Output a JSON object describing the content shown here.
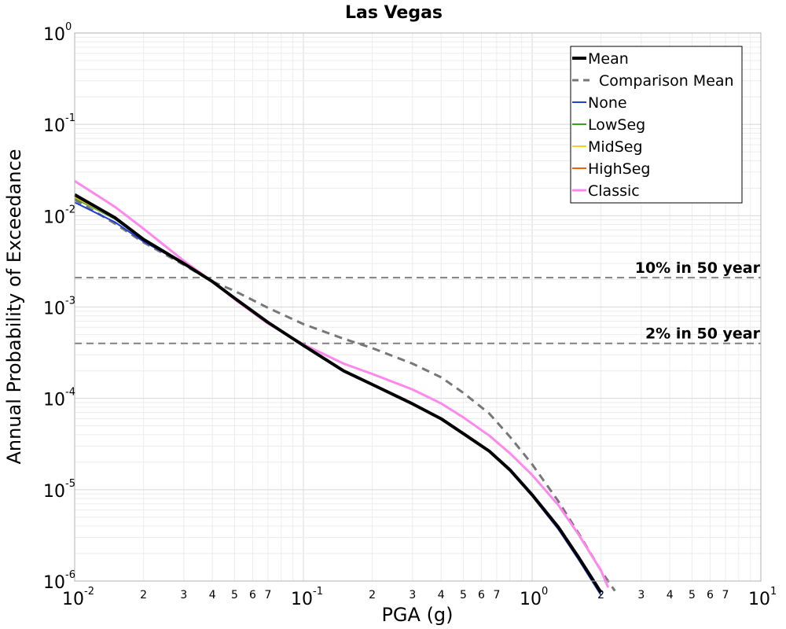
{
  "chart_data": {
    "type": "line",
    "title": "Las Vegas",
    "xlabel": "PGA (g)",
    "ylabel": "Annual Probability of Exceedance",
    "xscale": "log",
    "yscale": "log",
    "xlim": [
      0.01,
      10
    ],
    "ylim": [
      1e-06,
      1
    ],
    "grid": true,
    "legend_position": "top-right",
    "x_major_ticks": [
      {
        "base": "10",
        "exp": "-2",
        "value": 0.01
      },
      {
        "base": "10",
        "exp": "-1",
        "value": 0.1
      },
      {
        "base": "10",
        "exp": "0",
        "value": 1
      },
      {
        "base": "10",
        "exp": "1",
        "value": 10
      }
    ],
    "y_major_ticks": [
      {
        "base": "10",
        "exp": "0",
        "value": 1
      },
      {
        "base": "10",
        "exp": "-1",
        "value": 0.1
      },
      {
        "base": "10",
        "exp": "-2",
        "value": 0.01
      },
      {
        "base": "10",
        "exp": "-3",
        "value": 0.001
      },
      {
        "base": "10",
        "exp": "-4",
        "value": 0.0001
      },
      {
        "base": "10",
        "exp": "-5",
        "value": 1e-05
      },
      {
        "base": "10",
        "exp": "-6",
        "value": 1e-06
      }
    ],
    "x_minor_ticks": [
      {
        "label": "2",
        "value": 0.02
      },
      {
        "label": "3",
        "value": 0.03
      },
      {
        "label": "4",
        "value": 0.04
      },
      {
        "label": "5",
        "value": 0.05
      },
      {
        "label": "6",
        "value": 0.06
      },
      {
        "label": "7",
        "value": 0.07
      },
      {
        "label": "2",
        "value": 0.2
      },
      {
        "label": "3",
        "value": 0.3
      },
      {
        "label": "4",
        "value": 0.4
      },
      {
        "label": "5",
        "value": 0.5
      },
      {
        "label": "6",
        "value": 0.6
      },
      {
        "label": "7",
        "value": 0.7
      },
      {
        "label": "2",
        "value": 2
      },
      {
        "label": "3",
        "value": 3
      },
      {
        "label": "4",
        "value": 4
      },
      {
        "label": "5",
        "value": 5
      },
      {
        "label": "6",
        "value": 6
      },
      {
        "label": "7",
        "value": 7
      }
    ],
    "reference_lines": [
      {
        "label": "10% in 50 year",
        "y": 0.0021
      },
      {
        "label": "2% in 50 year",
        "y": 0.0004
      }
    ],
    "series": [
      {
        "name": "Mean",
        "color": "#000000",
        "style": "solid",
        "width": 4,
        "x": [
          0.01,
          0.015,
          0.02,
          0.03,
          0.04,
          0.05,
          0.07,
          0.1,
          0.15,
          0.2,
          0.3,
          0.4,
          0.5,
          0.65,
          0.8,
          1.0,
          1.3,
          1.6,
          2.0
        ],
        "y": [
          0.017,
          0.0095,
          0.0055,
          0.003,
          0.0019,
          0.00125,
          0.00068,
          0.00038,
          0.0002,
          0.000142,
          8.72e-05,
          5.98e-05,
          4.12e-05,
          2.64e-05,
          1.65e-05,
          8.8e-06,
          3.9e-06,
          1.8e-06,
          7.5e-07
        ]
      },
      {
        "name": "Comparison Mean",
        "color": "#777777",
        "style": "dashed",
        "width": 3,
        "x": [
          0.01,
          0.015,
          0.02,
          0.03,
          0.04,
          0.05,
          0.07,
          0.1,
          0.15,
          0.2,
          0.3,
          0.4,
          0.5,
          0.65,
          0.8,
          1.0,
          1.3,
          1.6,
          2.0,
          2.3
        ],
        "y": [
          0.015,
          0.0082,
          0.0051,
          0.0029,
          0.0019,
          0.0015,
          0.00098,
          0.00065,
          0.00045,
          0.000355,
          0.00024,
          0.00017,
          0.000115,
          6.8e-05,
          3.8e-05,
          1.9e-05,
          7.5e-06,
          3.3e-06,
          1.3e-06,
          7.8e-07
        ]
      },
      {
        "name": "None",
        "color": "#1f3fd6",
        "style": "solid",
        "width": 2,
        "x": [
          0.01,
          0.015,
          0.02,
          0.03,
          0.04,
          0.05,
          0.07,
          0.1,
          0.15,
          0.2,
          0.3,
          0.4,
          0.5,
          0.65,
          0.8,
          1.0,
          1.3,
          1.6,
          2.0
        ],
        "y": [
          0.014,
          0.0085,
          0.0052,
          0.003,
          0.0019,
          0.00126,
          0.00069,
          0.00038,
          0.0002,
          0.000142,
          8.65e-05,
          5.9e-05,
          4.05e-05,
          2.6e-05,
          1.6e-05,
          8.5e-06,
          3.7e-06,
          1.7e-06,
          7e-07
        ]
      },
      {
        "name": "LowSeg",
        "color": "#3aa02a",
        "style": "solid",
        "width": 2,
        "x": [
          0.01,
          0.015,
          0.02,
          0.03,
          0.04,
          0.05,
          0.07,
          0.1,
          0.15,
          0.2,
          0.3,
          0.4,
          0.5,
          0.65,
          0.8,
          1.0,
          1.3,
          1.6,
          2.0
        ],
        "y": [
          0.0155,
          0.0092,
          0.0054,
          0.003,
          0.0019,
          0.00125,
          0.00068,
          0.00038,
          0.0002,
          0.000142,
          8.7e-05,
          5.98e-05,
          4.12e-05,
          2.64e-05,
          1.65e-05,
          8.8e-06,
          3.9e-06,
          1.8e-06,
          7.5e-07
        ]
      },
      {
        "name": "MidSeg",
        "color": "#f0d020",
        "style": "solid",
        "width": 2,
        "x": [
          0.01,
          0.015,
          0.02,
          0.03,
          0.04,
          0.05,
          0.07,
          0.1,
          0.15,
          0.2,
          0.3,
          0.4,
          0.5,
          0.65,
          0.8,
          1.0,
          1.3,
          1.6,
          2.0
        ],
        "y": [
          0.016,
          0.0093,
          0.0055,
          0.003,
          0.0019,
          0.00125,
          0.00068,
          0.00038,
          0.0002,
          0.000142,
          8.7e-05,
          5.98e-05,
          4.12e-05,
          2.64e-05,
          1.65e-05,
          8.8e-06,
          3.9e-06,
          1.8e-06,
          7.5e-07
        ]
      },
      {
        "name": "HighSeg",
        "color": "#f06010",
        "style": "solid",
        "width": 2,
        "x": [
          0.01,
          0.015,
          0.02,
          0.03,
          0.04,
          0.05,
          0.07,
          0.1,
          0.15,
          0.2,
          0.3,
          0.4,
          0.5,
          0.65,
          0.8,
          1.0,
          1.3,
          1.6,
          2.0
        ],
        "y": [
          0.0165,
          0.0094,
          0.0055,
          0.003,
          0.0019,
          0.00125,
          0.00068,
          0.00038,
          0.0002,
          0.000142,
          8.7e-05,
          5.98e-05,
          4.12e-05,
          2.64e-05,
          1.65e-05,
          8.8e-06,
          3.9e-06,
          1.8e-06,
          7.5e-07
        ]
      },
      {
        "name": "Classic",
        "color": "#ff88ee",
        "style": "solid",
        "width": 3,
        "x": [
          0.01,
          0.015,
          0.02,
          0.03,
          0.04,
          0.05,
          0.07,
          0.1,
          0.15,
          0.2,
          0.3,
          0.4,
          0.5,
          0.65,
          0.8,
          1.0,
          1.3,
          1.6,
          2.0,
          2.15
        ],
        "y": [
          0.024,
          0.0125,
          0.0072,
          0.0032,
          0.0019,
          0.00122,
          0.00066,
          0.00039,
          0.00024,
          0.000185,
          0.000125,
          8.8e-05,
          6.2e-05,
          3.9e-05,
          2.5e-05,
          1.45e-05,
          6.8e-06,
          3.2e-06,
          1.3e-06,
          8.5e-07
        ]
      }
    ]
  }
}
